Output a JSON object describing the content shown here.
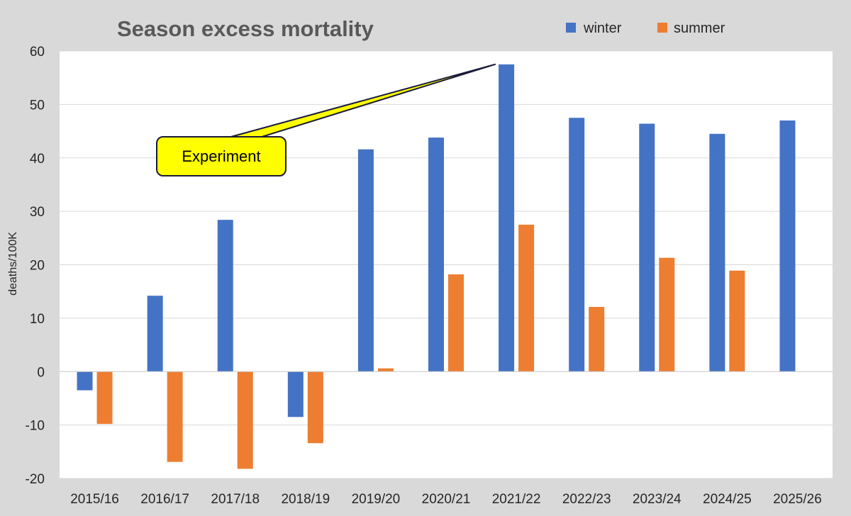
{
  "chart_data": {
    "type": "bar",
    "title": "Season excess mortality",
    "xlabel": "",
    "ylabel": "deaths/100K",
    "ylim": [
      -20,
      60
    ],
    "yticks": [
      60,
      50,
      40,
      30,
      20,
      10,
      0,
      -10,
      -20
    ],
    "grid": true,
    "legend_position": "top-right",
    "categories": [
      "2015/16",
      "2016/17",
      "2017/18",
      "2018/19",
      "2019/20",
      "2020/21",
      "2021/22",
      "2022/23",
      "2023/24",
      "2024/25",
      "2025/26"
    ],
    "series": [
      {
        "name": "winter",
        "color": "#4472c4",
        "values": [
          -3.5,
          14.2,
          28.4,
          -8.5,
          41.6,
          43.8,
          57.5,
          47.5,
          46.4,
          44.5,
          47.0
        ]
      },
      {
        "name": "summer",
        "color": "#ed7d31",
        "values": [
          -9.8,
          -16.9,
          -18.2,
          -13.4,
          0.6,
          18.2,
          27.5,
          12.1,
          21.3,
          18.9,
          null
        ]
      }
    ],
    "annotations": [
      {
        "text": "Experiment",
        "points_to_category": "2021/22",
        "points_to_series": "winter",
        "points_to_value": 57.5,
        "fill": "#ffff00"
      }
    ]
  }
}
